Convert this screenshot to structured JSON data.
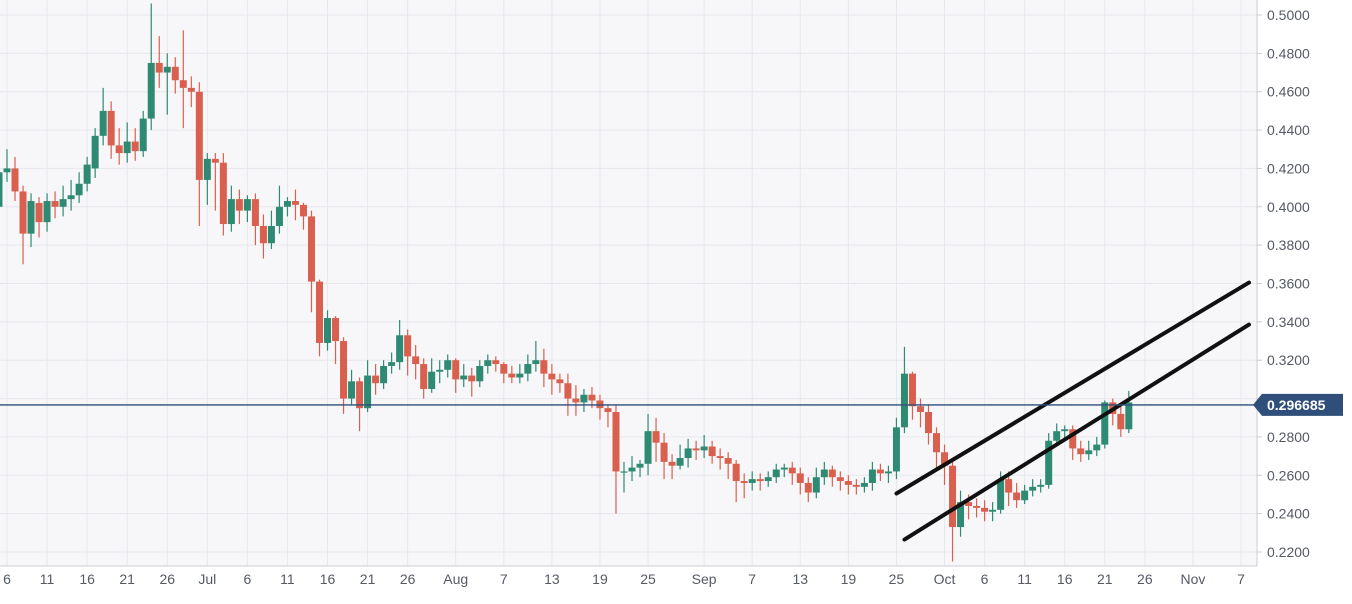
{
  "colors": {
    "up": "#2e8a73",
    "down": "#d9604f",
    "grid": "#e6e8ee",
    "plot_bg": "#f7f7f9",
    "price_line": "#2f4f7a",
    "price_tag_bg": "#2f4f7a",
    "channel": "#111111",
    "axis_text": "#555a66"
  },
  "current_price": {
    "label": "0.296685",
    "value": 0.296685
  },
  "chart_data": {
    "type": "candlestick",
    "y_range": [
      0.215,
      0.503
    ],
    "y_ticks": [
      {
        "value": 0.5,
        "label": "0.5000"
      },
      {
        "value": 0.48,
        "label": "0.4800"
      },
      {
        "value": 0.46,
        "label": "0.4600"
      },
      {
        "value": 0.44,
        "label": "0.4400"
      },
      {
        "value": 0.42,
        "label": "0.4200"
      },
      {
        "value": 0.4,
        "label": "0.4000"
      },
      {
        "value": 0.38,
        "label": "0.3800"
      },
      {
        "value": 0.36,
        "label": "0.3600"
      },
      {
        "value": 0.34,
        "label": "0.3400"
      },
      {
        "value": 0.32,
        "label": "0.3200"
      },
      {
        "value": 0.3,
        "label": "0.3000"
      },
      {
        "value": 0.28,
        "label": "0.2800"
      },
      {
        "value": 0.26,
        "label": "0.2600"
      },
      {
        "value": 0.24,
        "label": "0.2400"
      },
      {
        "value": 0.22,
        "label": "0.2200"
      }
    ],
    "x_range": [
      "2020-06-05",
      "2020-11-08"
    ],
    "x_ticks": [
      {
        "date": "2020-06-06",
        "label": "6"
      },
      {
        "date": "2020-06-11",
        "label": "11"
      },
      {
        "date": "2020-06-16",
        "label": "16"
      },
      {
        "date": "2020-06-21",
        "label": "21"
      },
      {
        "date": "2020-06-26",
        "label": "26"
      },
      {
        "date": "2020-07-01",
        "label": "Jul"
      },
      {
        "date": "2020-07-06",
        "label": "6"
      },
      {
        "date": "2020-07-11",
        "label": "11"
      },
      {
        "date": "2020-07-16",
        "label": "16"
      },
      {
        "date": "2020-07-21",
        "label": "21"
      },
      {
        "date": "2020-07-26",
        "label": "26"
      },
      {
        "date": "2020-08-01",
        "label": "Aug"
      },
      {
        "date": "2020-08-07",
        "label": "7"
      },
      {
        "date": "2020-08-13",
        "label": "13"
      },
      {
        "date": "2020-08-19",
        "label": "19"
      },
      {
        "date": "2020-08-25",
        "label": "25"
      },
      {
        "date": "2020-09-01",
        "label": "Sep"
      },
      {
        "date": "2020-09-07",
        "label": "7"
      },
      {
        "date": "2020-09-13",
        "label": "13"
      },
      {
        "date": "2020-09-19",
        "label": "19"
      },
      {
        "date": "2020-09-25",
        "label": "25"
      },
      {
        "date": "2020-10-01",
        "label": "Oct"
      },
      {
        "date": "2020-10-06",
        "label": "6"
      },
      {
        "date": "2020-10-11",
        "label": "11"
      },
      {
        "date": "2020-10-16",
        "label": "16"
      },
      {
        "date": "2020-10-21",
        "label": "21"
      },
      {
        "date": "2020-10-26",
        "label": "26"
      },
      {
        "date": "2020-11-01",
        "label": "Nov"
      },
      {
        "date": "2020-11-07",
        "label": "7"
      }
    ],
    "grid": true,
    "start_date": "2020-06-05",
    "candles": [
      [
        0.4,
        0.418,
        0.394,
        0.42
      ],
      [
        0.418,
        0.42,
        0.413,
        0.43
      ],
      [
        0.42,
        0.408,
        0.403,
        0.426
      ],
      [
        0.408,
        0.386,
        0.37,
        0.411
      ],
      [
        0.386,
        0.403,
        0.379,
        0.407
      ],
      [
        0.402,
        0.392,
        0.384,
        0.405
      ],
      [
        0.392,
        0.403,
        0.387,
        0.407
      ],
      [
        0.403,
        0.4,
        0.394,
        0.408
      ],
      [
        0.4,
        0.404,
        0.395,
        0.411
      ],
      [
        0.404,
        0.406,
        0.398,
        0.414
      ],
      [
        0.406,
        0.412,
        0.402,
        0.418
      ],
      [
        0.412,
        0.422,
        0.408,
        0.426
      ],
      [
        0.42,
        0.437,
        0.415,
        0.441
      ],
      [
        0.437,
        0.45,
        0.432,
        0.462
      ],
      [
        0.45,
        0.432,
        0.425,
        0.455
      ],
      [
        0.432,
        0.428,
        0.422,
        0.441
      ],
      [
        0.428,
        0.434,
        0.423,
        0.444
      ],
      [
        0.434,
        0.429,
        0.424,
        0.441
      ],
      [
        0.429,
        0.446,
        0.426,
        0.45
      ],
      [
        0.446,
        0.475,
        0.44,
        0.506
      ],
      [
        0.475,
        0.47,
        0.462,
        0.489
      ],
      [
        0.47,
        0.473,
        0.448,
        0.48
      ],
      [
        0.473,
        0.466,
        0.459,
        0.478
      ],
      [
        0.466,
        0.462,
        0.441,
        0.492
      ],
      [
        0.462,
        0.46,
        0.452,
        0.468
      ],
      [
        0.46,
        0.414,
        0.39,
        0.465
      ],
      [
        0.414,
        0.425,
        0.401,
        0.428
      ],
      [
        0.425,
        0.423,
        0.398,
        0.428
      ],
      [
        0.423,
        0.391,
        0.385,
        0.428
      ],
      [
        0.391,
        0.404,
        0.387,
        0.411
      ],
      [
        0.404,
        0.398,
        0.391,
        0.409
      ],
      [
        0.398,
        0.404,
        0.392,
        0.406
      ],
      [
        0.404,
        0.39,
        0.38,
        0.407
      ],
      [
        0.39,
        0.381,
        0.373,
        0.396
      ],
      [
        0.381,
        0.39,
        0.378,
        0.398
      ],
      [
        0.39,
        0.4,
        0.386,
        0.411
      ],
      [
        0.4,
        0.403,
        0.395,
        0.405
      ],
      [
        0.403,
        0.401,
        0.393,
        0.409
      ],
      [
        0.401,
        0.395,
        0.388,
        0.402
      ],
      [
        0.395,
        0.361,
        0.345,
        0.398
      ],
      [
        0.361,
        0.329,
        0.322,
        0.362
      ],
      [
        0.329,
        0.342,
        0.325,
        0.346
      ],
      [
        0.342,
        0.33,
        0.318,
        0.343
      ],
      [
        0.33,
        0.3,
        0.292,
        0.332
      ],
      [
        0.3,
        0.309,
        0.297,
        0.315
      ],
      [
        0.309,
        0.295,
        0.283,
        0.311
      ],
      [
        0.295,
        0.312,
        0.293,
        0.32
      ],
      [
        0.312,
        0.308,
        0.302,
        0.318
      ],
      [
        0.308,
        0.317,
        0.305,
        0.32
      ],
      [
        0.317,
        0.319,
        0.313,
        0.324
      ],
      [
        0.319,
        0.333,
        0.315,
        0.341
      ],
      [
        0.333,
        0.322,
        0.312,
        0.336
      ],
      [
        0.322,
        0.318,
        0.31,
        0.328
      ],
      [
        0.318,
        0.305,
        0.3,
        0.321
      ],
      [
        0.305,
        0.314,
        0.303,
        0.321
      ],
      [
        0.314,
        0.315,
        0.308,
        0.32
      ],
      [
        0.315,
        0.32,
        0.311,
        0.323
      ],
      [
        0.32,
        0.31,
        0.303,
        0.321
      ],
      [
        0.31,
        0.312,
        0.306,
        0.318
      ],
      [
        0.312,
        0.309,
        0.301,
        0.316
      ],
      [
        0.309,
        0.317,
        0.306,
        0.32
      ],
      [
        0.317,
        0.32,
        0.313,
        0.323
      ],
      [
        0.32,
        0.318,
        0.314,
        0.322
      ],
      [
        0.318,
        0.313,
        0.308,
        0.319
      ],
      [
        0.313,
        0.311,
        0.308,
        0.317
      ],
      [
        0.311,
        0.313,
        0.308,
        0.318
      ],
      [
        0.313,
        0.318,
        0.309,
        0.323
      ],
      [
        0.318,
        0.32,
        0.314,
        0.33
      ],
      [
        0.32,
        0.313,
        0.306,
        0.326
      ],
      [
        0.313,
        0.31,
        0.302,
        0.318
      ],
      [
        0.31,
        0.308,
        0.303,
        0.313
      ],
      [
        0.308,
        0.3,
        0.291,
        0.313
      ],
      [
        0.3,
        0.298,
        0.291,
        0.307
      ],
      [
        0.298,
        0.302,
        0.293,
        0.305
      ],
      [
        0.302,
        0.299,
        0.295,
        0.306
      ],
      [
        0.299,
        0.295,
        0.289,
        0.302
      ],
      [
        0.295,
        0.293,
        0.285,
        0.297
      ],
      [
        0.293,
        0.262,
        0.24,
        0.297
      ],
      [
        0.262,
        0.262,
        0.251,
        0.267
      ],
      [
        0.262,
        0.264,
        0.257,
        0.27
      ],
      [
        0.264,
        0.266,
        0.259,
        0.268
      ],
      [
        0.266,
        0.283,
        0.26,
        0.292
      ],
      [
        0.283,
        0.277,
        0.267,
        0.29
      ],
      [
        0.277,
        0.267,
        0.258,
        0.282
      ],
      [
        0.267,
        0.265,
        0.258,
        0.271
      ],
      [
        0.265,
        0.269,
        0.263,
        0.276
      ],
      [
        0.269,
        0.274,
        0.264,
        0.279
      ],
      [
        0.274,
        0.273,
        0.268,
        0.278
      ],
      [
        0.273,
        0.275,
        0.269,
        0.281
      ],
      [
        0.275,
        0.27,
        0.266,
        0.278
      ],
      [
        0.27,
        0.269,
        0.263,
        0.274
      ],
      [
        0.269,
        0.266,
        0.258,
        0.272
      ],
      [
        0.266,
        0.257,
        0.246,
        0.268
      ],
      [
        0.257,
        0.256,
        0.248,
        0.261
      ],
      [
        0.256,
        0.258,
        0.252,
        0.262
      ],
      [
        0.258,
        0.257,
        0.252,
        0.261
      ],
      [
        0.257,
        0.259,
        0.254,
        0.262
      ],
      [
        0.259,
        0.263,
        0.256,
        0.266
      ],
      [
        0.263,
        0.264,
        0.259,
        0.266
      ],
      [
        0.264,
        0.261,
        0.255,
        0.267
      ],
      [
        0.261,
        0.256,
        0.25,
        0.264
      ],
      [
        0.256,
        0.251,
        0.246,
        0.259
      ],
      [
        0.251,
        0.259,
        0.248,
        0.264
      ],
      [
        0.259,
        0.263,
        0.255,
        0.267
      ],
      [
        0.263,
        0.259,
        0.254,
        0.265
      ],
      [
        0.259,
        0.257,
        0.252,
        0.262
      ],
      [
        0.257,
        0.255,
        0.25,
        0.26
      ],
      [
        0.255,
        0.254,
        0.25,
        0.258
      ],
      [
        0.254,
        0.256,
        0.251,
        0.259
      ],
      [
        0.256,
        0.263,
        0.252,
        0.267
      ],
      [
        0.263,
        0.261,
        0.257,
        0.266
      ],
      [
        0.261,
        0.262,
        0.256,
        0.265
      ],
      [
        0.262,
        0.285,
        0.258,
        0.29
      ],
      [
        0.285,
        0.313,
        0.282,
        0.327
      ],
      [
        0.313,
        0.296,
        0.289,
        0.314
      ],
      [
        0.296,
        0.293,
        0.285,
        0.3
      ],
      [
        0.293,
        0.282,
        0.276,
        0.297
      ],
      [
        0.282,
        0.272,
        0.263,
        0.285
      ],
      [
        0.272,
        0.265,
        0.255,
        0.276
      ],
      [
        0.265,
        0.233,
        0.215,
        0.268
      ],
      [
        0.233,
        0.246,
        0.228,
        0.252
      ],
      [
        0.246,
        0.244,
        0.237,
        0.25
      ],
      [
        0.244,
        0.243,
        0.238,
        0.248
      ],
      [
        0.243,
        0.241,
        0.236,
        0.247
      ],
      [
        0.241,
        0.242,
        0.236,
        0.246
      ],
      [
        0.242,
        0.258,
        0.24,
        0.262
      ],
      [
        0.258,
        0.251,
        0.244,
        0.262
      ],
      [
        0.251,
        0.247,
        0.243,
        0.256
      ],
      [
        0.247,
        0.252,
        0.245,
        0.255
      ],
      [
        0.252,
        0.254,
        0.249,
        0.258
      ],
      [
        0.254,
        0.255,
        0.251,
        0.258
      ],
      [
        0.255,
        0.278,
        0.253,
        0.282
      ],
      [
        0.278,
        0.283,
        0.275,
        0.287
      ],
      [
        0.283,
        0.284,
        0.279,
        0.286
      ],
      [
        0.284,
        0.274,
        0.268,
        0.286
      ],
      [
        0.274,
        0.271,
        0.267,
        0.278
      ],
      [
        0.271,
        0.273,
        0.268,
        0.278
      ],
      [
        0.273,
        0.276,
        0.27,
        0.28
      ],
      [
        0.276,
        0.298,
        0.274,
        0.299
      ],
      [
        0.298,
        0.292,
        0.286,
        0.3
      ],
      [
        0.292,
        0.284,
        0.28,
        0.296
      ],
      [
        0.284,
        0.298,
        0.282,
        0.304
      ]
    ],
    "channel_lines": [
      {
        "from": {
          "date": "2020-09-25",
          "value": 0.2505
        },
        "to": {
          "date": "2020-11-08",
          "value": 0.3605
        }
      },
      {
        "from": {
          "date": "2020-09-26",
          "value": 0.2265
        },
        "to": {
          "date": "2020-11-08",
          "value": 0.3386
        }
      }
    ]
  }
}
